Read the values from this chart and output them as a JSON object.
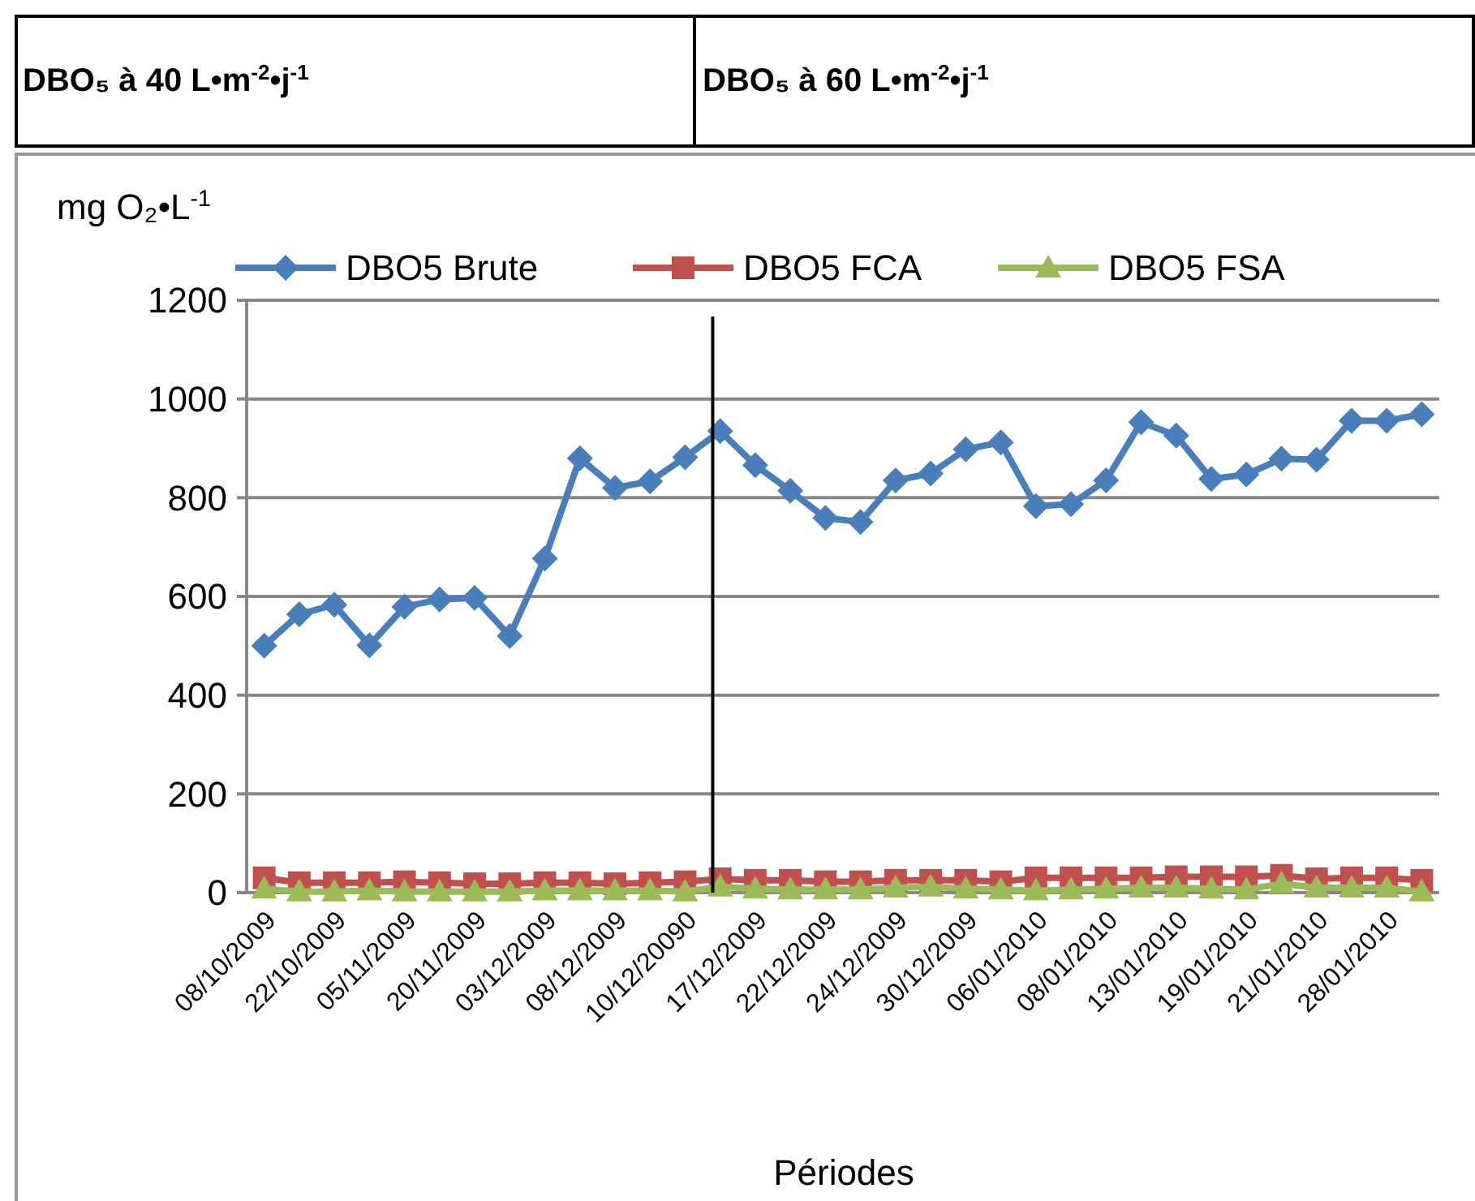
{
  "chart_data": {
    "type": "line",
    "annotations": [
      "DBO₅ à 40 L•m$^{-2}$•j$^{-1}$",
      "DBO₅ à 60 L•m$^{-2}$•j$^{-1}$"
    ],
    "ylabel": "mg O₂•L$^{-1}$",
    "xlabel": "Périodes",
    "categories": [
      "08/10/2009",
      null,
      "22/10/2009",
      null,
      "05/11/2009",
      null,
      "20/11/2009",
      null,
      "03/12/2009",
      null,
      "08/12/2009",
      null,
      "10/12/20090",
      null,
      "17/12/2009",
      null,
      "22/12/2009",
      null,
      "24/12/2009",
      null,
      "30/12/2009",
      null,
      "06/01/2010",
      null,
      "08/01/2010",
      null,
      "13/01/2010",
      null,
      "19/01/2010",
      null,
      "21/01/2010",
      null,
      "28/01/2010",
      null
    ],
    "series": [
      {
        "name": "DBO5 Brute",
        "color": "#4a7ebb",
        "marker": "diamond",
        "values": [
          500,
          564,
          583,
          501,
          579,
          594,
          597,
          520,
          677,
          880,
          820,
          833,
          882,
          935,
          866,
          814,
          759,
          751,
          835,
          849,
          898,
          912,
          783,
          787,
          835,
          953,
          926,
          838,
          847,
          879,
          877,
          956,
          956,
          969
        ]
      },
      {
        "name": "DBO5 FCA",
        "color": "#c0504d",
        "marker": "square",
        "values": [
          30,
          20,
          20,
          20,
          22,
          20,
          18,
          18,
          20,
          20,
          18,
          20,
          22,
          28,
          25,
          25,
          22,
          22,
          25,
          25,
          25,
          22,
          30,
          30,
          30,
          30,
          32,
          32,
          32,
          35,
          28,
          30,
          30,
          25
        ]
      },
      {
        "name": "DBO5 FSA",
        "color": "#9bbb59",
        "marker": "triangle",
        "values": [
          8,
          2,
          2,
          4,
          2,
          2,
          2,
          2,
          4,
          4,
          4,
          4,
          2,
          12,
          8,
          6,
          6,
          6,
          10,
          12,
          8,
          6,
          4,
          6,
          8,
          10,
          10,
          8,
          6,
          18,
          10,
          10,
          10,
          2
        ]
      }
    ],
    "ylim": [
      0,
      1200
    ],
    "yticks": [
      0,
      200,
      400,
      600,
      800,
      1000,
      1200
    ],
    "grid": "y",
    "legend": "top",
    "ref_lines": [
      {
        "axis": "x",
        "value": "10/12/20090",
        "color": "#000000"
      }
    ]
  }
}
